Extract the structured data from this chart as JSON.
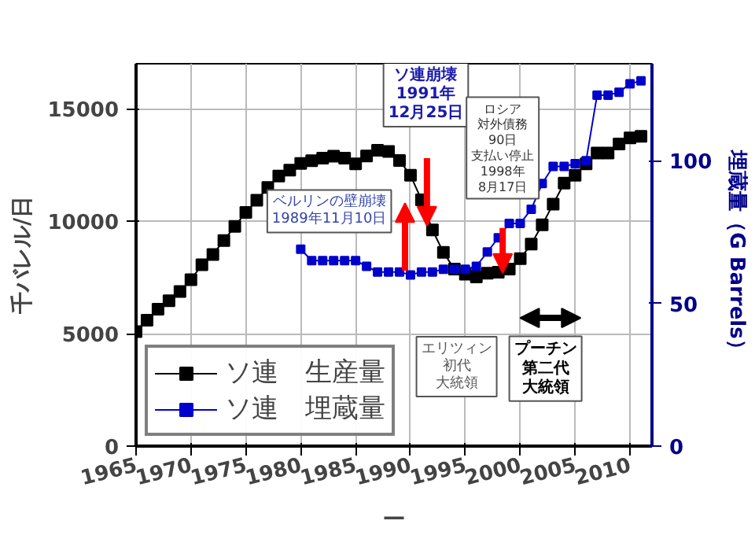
{
  "chart_data": {
    "type": "line",
    "xlabel": "—",
    "ylabel": "千バレル/日",
    "y2label": "埋蔵量（G Barrels）",
    "xlim": [
      1965,
      2012
    ],
    "xticks": [
      1965,
      1970,
      1975,
      1980,
      1985,
      1990,
      1995,
      2000,
      2005,
      2010
    ],
    "ylim": [
      0,
      17000
    ],
    "yticks": [
      0,
      5000,
      10000,
      15000
    ],
    "y2lim": [
      0,
      134
    ],
    "y2ticks": [
      0,
      50,
      100
    ],
    "grid": true,
    "legend": "bottom left",
    "marker": "square",
    "line_style": "solid",
    "series": [
      {
        "name": "ソ連　生産量",
        "color": "#000000",
        "x": [
          1965,
          1966,
          1967,
          1968,
          1969,
          1970,
          1971,
          1972,
          1973,
          1974,
          1975,
          1976,
          1977,
          1978,
          1979,
          1980,
          1981,
          1982,
          1983,
          1984,
          1985,
          1986,
          1987,
          1988,
          1989,
          1990,
          1991,
          1992,
          1993,
          1994,
          1995,
          1996,
          1997,
          1998,
          1999,
          2000,
          2001,
          2002,
          2003,
          2004,
          2005,
          2006,
          2007,
          2008,
          2009,
          2010,
          2011
        ],
        "values": [
          5090,
          5600,
          6090,
          6460,
          6870,
          7400,
          8060,
          8520,
          9140,
          9770,
          10390,
          10930,
          11500,
          12010,
          12270,
          12570,
          12690,
          12800,
          12890,
          12800,
          12550,
          12900,
          13150,
          13100,
          12700,
          12040,
          10950,
          9610,
          8610,
          7870,
          7640,
          7520,
          7690,
          7730,
          7870,
          8330,
          8980,
          9840,
          10760,
          11690,
          12040,
          12550,
          13030,
          13030,
          13430,
          13700,
          13770
        ]
      },
      {
        "name": "ソ連　埋蔵量",
        "color": "#0000cc",
        "axis": "y2",
        "x": [
          1980,
          1981,
          1982,
          1983,
          1984,
          1985,
          1986,
          1987,
          1988,
          1989,
          1990,
          1991,
          1992,
          1993,
          1994,
          1995,
          1996,
          1997,
          1998,
          1999,
          2000,
          2001,
          2002,
          2003,
          2004,
          2005,
          2006,
          2007,
          2008,
          2009,
          2010,
          2011
        ],
        "values": [
          69,
          65,
          65,
          65,
          65,
          65,
          63,
          61,
          61,
          61,
          60,
          61,
          61,
          62,
          62,
          62,
          63,
          68,
          73,
          78,
          78,
          83,
          92,
          98,
          98,
          99,
          100,
          123,
          123,
          124,
          127,
          128
        ]
      }
    ],
    "annotations": [
      "ベルリンの壁崩壊1989年11月10日",
      "ソ連崩壊1991年12月25日",
      "ロシア対外債務90日支払い停止1998年8月17日",
      "エリツィン初代大統領",
      "プーチン第二代大統領"
    ]
  }
}
